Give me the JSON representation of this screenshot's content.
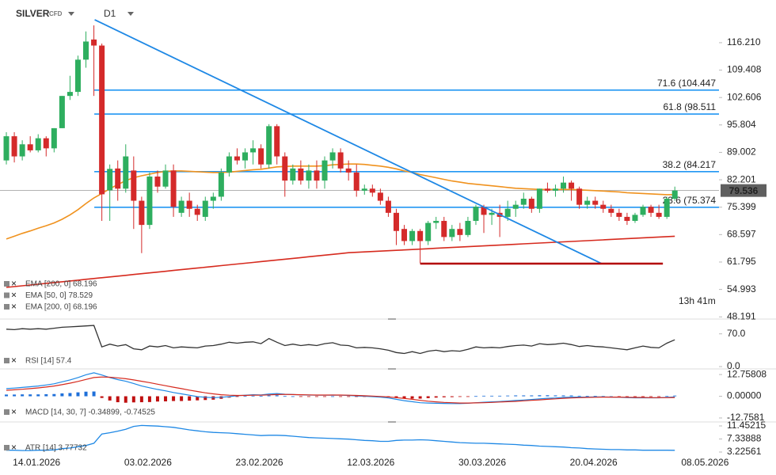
{
  "chart_data": [
    {
      "type": "candlestick",
      "title": "SILVER",
      "subtitle": "CFD",
      "timeframe": "D1",
      "categories": [
        null,
        null,
        null,
        "14.01.2026",
        null,
        null,
        null,
        null,
        null,
        null,
        null,
        null,
        null,
        null,
        null,
        null,
        null,
        "03.02.2026",
        null,
        null,
        null,
        null,
        null,
        null,
        null,
        null,
        null,
        null,
        null,
        null,
        null,
        "23.02.2026",
        null,
        null,
        null,
        null,
        null,
        null,
        null,
        null,
        null,
        null,
        null,
        null,
        null,
        "12.03.2026",
        null,
        null,
        null,
        null,
        null,
        null,
        null,
        null,
        null,
        null,
        null,
        null,
        null,
        "30.03.2026",
        null,
        null,
        null,
        null,
        null,
        null,
        null,
        null,
        null,
        null,
        null,
        null,
        null,
        "20.04.2026",
        null,
        null,
        null,
        null,
        null,
        null,
        null,
        null,
        null,
        null,
        null,
        null,
        null,
        "08.05.2026"
      ],
      "open": [
        87,
        93,
        88,
        91,
        89.5,
        92.5,
        90,
        95,
        103,
        104,
        112,
        117,
        115.5,
        79.6,
        85,
        80,
        84.5,
        77,
        71,
        83,
        80.5,
        84.5,
        74,
        77,
        75,
        73,
        77,
        78,
        84,
        88,
        87,
        89,
        90,
        86,
        95.5,
        88,
        82,
        85,
        82,
        84.5,
        82,
        87,
        89,
        85,
        84,
        79.5,
        80,
        79,
        77,
        74,
        70,
        67,
        69.5,
        67,
        71.5,
        72,
        68,
        70,
        68.5,
        72,
        75.5,
        73.5,
        74,
        73,
        75,
        76,
        77.5,
        75,
        80,
        79.5,
        80,
        81.5,
        80,
        76,
        77,
        76,
        75,
        74,
        73,
        72,
        73.5,
        75.5,
        74,
        73,
        77.5,
        null,
        null,
        null
      ],
      "high": [
        94,
        94,
        92,
        93,
        93.5,
        93,
        95,
        103,
        108,
        113,
        119,
        120.5,
        116,
        86,
        87,
        91,
        88,
        78,
        84,
        84.5,
        86,
        86,
        78,
        79,
        76,
        78,
        79,
        85,
        89,
        90,
        90,
        92,
        91,
        96,
        96,
        89,
        86,
        87,
        86,
        87,
        88,
        90,
        90,
        87,
        86,
        81,
        81,
        80,
        78,
        75,
        71,
        70,
        70,
        72,
        73,
        73,
        71,
        71.5,
        73,
        76,
        76,
        75,
        76,
        77,
        77,
        79,
        78,
        80,
        81.5,
        81,
        83,
        82,
        80.5,
        78,
        78,
        77,
        76,
        75,
        74,
        74,
        76,
        76,
        76,
        78,
        80.5,
        null,
        null,
        null
      ],
      "low": [
        86,
        86.5,
        87,
        89,
        89,
        88,
        89,
        95,
        102,
        103,
        110,
        103,
        72,
        72,
        77,
        79,
        70,
        64,
        70,
        79,
        80,
        73,
        73,
        73,
        72,
        72,
        75,
        77,
        83,
        86,
        85,
        86,
        85,
        85,
        86,
        78,
        81,
        81,
        80,
        80,
        80,
        85,
        84,
        82,
        78,
        78.5,
        78,
        76,
        73,
        66,
        66,
        66,
        61.5,
        66,
        70,
        67,
        67,
        67,
        68,
        71,
        69,
        71,
        68,
        72,
        73,
        75,
        74,
        74,
        79,
        78,
        79,
        77,
        75,
        75,
        75,
        74,
        73,
        72,
        71,
        71.5,
        73,
        73,
        72.5,
        72.5,
        77,
        null,
        null,
        null
      ],
      "close": [
        93,
        88,
        91,
        89.5,
        92.5,
        90,
        95,
        103,
        104,
        112,
        116.5,
        115.5,
        78.6,
        84.9,
        80,
        88,
        77,
        71,
        83,
        80.5,
        84.5,
        75.5,
        77,
        75,
        73.5,
        77,
        78,
        84,
        88,
        87,
        89,
        90,
        86,
        95.5,
        88,
        82,
        85,
        82,
        84.5,
        82,
        87,
        89,
        85,
        84,
        79.5,
        80,
        79,
        77,
        74,
        69.5,
        67,
        69.5,
        67,
        71.5,
        72,
        68,
        70,
        68.5,
        72,
        75.5,
        73.5,
        74,
        73,
        75,
        76,
        77.5,
        75,
        80,
        79.5,
        80,
        81.5,
        80,
        76,
        77,
        76,
        75,
        74,
        73,
        72,
        73.5,
        75.5,
        74,
        73,
        77.5,
        79.536,
        null,
        null,
        null
      ],
      "up_color": "#2eae5f",
      "down_color": "#d42a2a",
      "series": [
        {
          "color": "#d62a1e",
          "values": [
            55.5,
            55.7,
            55.9,
            56.1,
            56.3,
            56.5,
            56.7,
            56.9,
            57.1,
            57.3,
            57.5,
            57.7,
            57.9,
            58.1,
            58.3,
            58.5,
            58.7,
            58.9,
            59.1,
            59.3,
            59.5,
            59.7,
            59.9,
            60.1,
            60.3,
            60.5,
            60.7,
            60.9,
            61.1,
            61.3,
            61.5,
            61.7,
            61.9,
            62.1,
            62.3,
            62.5,
            62.7,
            62.9,
            63.1,
            63.3,
            63.5,
            63.7,
            63.9,
            64.1,
            64.2,
            64.3,
            64.4,
            64.5,
            64.6,
            64.7,
            64.8,
            64.9,
            65.0,
            65.1,
            65.2,
            65.3,
            65.4,
            65.5,
            65.6,
            65.7,
            65.8,
            65.9,
            66.0,
            66.1,
            66.2,
            66.3,
            66.4,
            66.5,
            66.6,
            66.7,
            66.8,
            66.9,
            67.0,
            67.1,
            67.2,
            67.3,
            67.4,
            67.5,
            67.6,
            67.7,
            67.8,
            67.9,
            68.0,
            68.1,
            68.196,
            null,
            null,
            null
          ]
        },
        {
          "color": "#f0921e",
          "values": [
            67.5,
            68.2,
            68.9,
            69.5,
            70.2,
            70.8,
            71.5,
            72.4,
            73.5,
            74.8,
            76.3,
            77.7,
            78.8,
            80.0,
            81.0,
            82.0,
            82.7,
            83.2,
            83.6,
            84.0,
            84.3,
            84.4,
            84.4,
            84.3,
            84.2,
            84.1,
            84.0,
            84.0,
            84.1,
            84.3,
            84.5,
            84.7,
            84.8,
            85.1,
            85.4,
            85.5,
            85.6,
            85.6,
            85.6,
            85.6,
            85.7,
            85.9,
            86.0,
            86.1,
            86.1,
            86.0,
            85.8,
            85.6,
            85.3,
            84.9,
            84.4,
            84.0,
            83.5,
            83.1,
            82.7,
            82.3,
            81.9,
            81.6,
            81.3,
            81.1,
            80.9,
            80.7,
            80.5,
            80.3,
            80.1,
            80.0,
            79.9,
            79.8,
            79.8,
            79.8,
            79.8,
            79.8,
            79.7,
            79.6,
            79.5,
            79.4,
            79.3,
            79.2,
            79.0,
            78.9,
            78.8,
            78.7,
            78.6,
            78.5,
            78.529,
            null,
            null,
            null
          ]
        }
      ],
      "legend": [
        "EMA [200, 0] 68.196",
        "EMA [50, 0] 78.529",
        "EMA [200, 0] 68.196"
      ],
      "levels": [
        {
          "value": 104.447,
          "label": "71.6 (104.447"
        },
        {
          "value": 98.511,
          "label": "61.8 (98.511"
        },
        {
          "value": 84.217,
          "label": "38.2 (84.217"
        },
        {
          "value": 75.374,
          "label": "23.6 (75.374"
        }
      ],
      "level_color": "#2196f3",
      "trendline": {
        "from": [
          11.1,
          121.9
        ],
        "to": [
          74.8,
          61.4
        ],
        "color": "#1e88e5"
      },
      "support": {
        "value": 61.4,
        "start": 52,
        "end": 82.5,
        "color": "#b30000"
      },
      "last_price": 79.536,
      "timer": "13h 41m",
      "ylim": [
        47.65,
        126.8
      ],
      "yticks": [
        {
          "value": 116.21,
          "label": "116.210"
        },
        109.408,
        102.606,
        95.804,
        89.002,
        82.201,
        75.399,
        68.597,
        61.795,
        54.993,
        48.191
      ]
    },
    {
      "type": "line",
      "label": "RSI [14] 57.4",
      "color": "#333333",
      "values": [
        80,
        79,
        81,
        80,
        81,
        80,
        82,
        84,
        85,
        86,
        87,
        88,
        42,
        48,
        44,
        47,
        38,
        36,
        44,
        42,
        45,
        40,
        42,
        41,
        40,
        44,
        45,
        48,
        52,
        50,
        52,
        53,
        49,
        60,
        52,
        45,
        48,
        45,
        47,
        45,
        49,
        51,
        46,
        45,
        40,
        41,
        40,
        38,
        35,
        30,
        28,
        32,
        28,
        33,
        35,
        32,
        34,
        33,
        37,
        42,
        40,
        41,
        40,
        43,
        45,
        46,
        44,
        49,
        47,
        48,
        50,
        47,
        43,
        45,
        43,
        42,
        40,
        38,
        36,
        40,
        44,
        41,
        40,
        50,
        57.4,
        null,
        null,
        null
      ],
      "ylim": [
        -5,
        100
      ],
      "yticks": [
        {
          "value": 70,
          "label": "70.0"
        },
        {
          "value": 0,
          "label": "0.0"
        }
      ]
    },
    {
      "type": "macd",
      "label": "MACD [14, 30, 7] -0.34899, -0.74525",
      "histogram": [
        1.0,
        1.0,
        1.1,
        1.1,
        1.1,
        1.2,
        1.3,
        1.7,
        1.9,
        2.3,
        2.7,
        2.8,
        -1.0,
        -2.5,
        -3.5,
        -3.8,
        -3.6,
        -3.5,
        -3.4,
        -3.1,
        -3.0,
        -2.8,
        -2.8,
        -2.6,
        -2.4,
        -2.2,
        -2.0,
        -1.5,
        -0.8,
        -0.3,
        0.1,
        0.3,
        0.2,
        0.5,
        0.6,
        0.1,
        0.0,
        -0.1,
        -0.1,
        -0.1,
        -0.1,
        0.0,
        -0.1,
        -0.1,
        -0.3,
        -0.3,
        -0.3,
        -0.4,
        -0.6,
        -1.0,
        -1.3,
        -1.4,
        -1.4,
        -1.1,
        -0.8,
        -0.6,
        -0.5,
        -0.3,
        -0.1,
        0.1,
        0.3,
        0.3,
        0.3,
        0.4,
        0.5,
        0.5,
        0.5,
        0.6,
        0.6,
        0.5,
        0.5,
        0.5,
        0.3,
        0.2,
        0.2,
        0.1,
        0.0,
        -0.1,
        -0.2,
        -0.2,
        -0.2,
        -0.1,
        -0.1,
        0.1,
        0.4,
        null,
        null,
        null
      ],
      "macd": [
        4.5,
        4.8,
        5.2,
        5.6,
        6.0,
        6.6,
        7.3,
        8.5,
        9.6,
        11.0,
        12.6,
        13.8,
        12.5,
        11.0,
        9.8,
        8.8,
        7.5,
        6.0,
        5.0,
        4.0,
        3.2,
        2.2,
        1.4,
        0.6,
        -0.2,
        -0.6,
        -0.8,
        -0.6,
        -0.2,
        0.3,
        0.6,
        0.9,
        0.8,
        1.3,
        1.6,
        1.2,
        1.0,
        0.8,
        0.7,
        0.6,
        0.6,
        0.7,
        0.6,
        0.5,
        0.2,
        0.0,
        -0.2,
        -0.5,
        -1.0,
        -1.8,
        -2.6,
        -3.2,
        -3.8,
        -4.0,
        -4.1,
        -4.2,
        -4.3,
        -4.3,
        -4.1,
        -3.8,
        -3.5,
        -3.3,
        -3.1,
        -2.8,
        -2.5,
        -2.2,
        -1.9,
        -1.5,
        -1.2,
        -1.0,
        -0.7,
        -0.5,
        -0.5,
        -0.5,
        -0.4,
        -0.4,
        -0.5,
        -0.6,
        -0.8,
        -0.9,
        -0.9,
        -0.9,
        -0.9,
        -0.7,
        -0.34899,
        null,
        null,
        null
      ],
      "signal": [
        3.5,
        3.8,
        4.1,
        4.5,
        4.9,
        5.4,
        6.0,
        6.8,
        7.7,
        8.7,
        9.9,
        11.0,
        11.3,
        11.2,
        10.8,
        10.3,
        9.6,
        8.8,
        8.0,
        7.1,
        6.2,
        5.3,
        4.5,
        3.6,
        2.8,
        2.0,
        1.4,
        0.9,
        0.6,
        0.5,
        0.5,
        0.6,
        0.6,
        0.8,
        1.0,
        1.1,
        1.0,
        0.9,
        0.8,
        0.7,
        0.7,
        0.7,
        0.7,
        0.6,
        0.5,
        0.3,
        0.1,
        -0.1,
        -0.4,
        -0.8,
        -1.3,
        -1.8,
        -2.4,
        -2.9,
        -3.3,
        -3.6,
        -3.8,
        -4.0,
        -4.0,
        -3.9,
        -3.8,
        -3.6,
        -3.4,
        -3.2,
        -3.0,
        -2.7,
        -2.4,
        -2.1,
        -1.8,
        -1.5,
        -1.2,
        -1.0,
        -0.8,
        -0.7,
        -0.6,
        -0.5,
        -0.5,
        -0.5,
        -0.6,
        -0.7,
        -0.7,
        -0.8,
        -0.8,
        -0.8,
        -0.74525,
        null,
        null,
        null
      ],
      "macd_color": "#1e88e5",
      "signal_color": "#d62a1e",
      "up_color": "#1e6fd9",
      "down_color": "#c01010",
      "ylim": [
        -15.1,
        15.6
      ],
      "yticks": [
        12.75808,
        {
          "value": 0,
          "label": "0.00000"
        },
        -12.7581
      ]
    },
    {
      "type": "line",
      "label": "ATR [14] 3.77732",
      "color": "#1e88e5",
      "values": [
        3.8,
        3.8,
        3.7,
        3.7,
        3.8,
        3.8,
        3.9,
        4.3,
        4.5,
        4.9,
        5.3,
        6.0,
        8.9,
        9.3,
        9.8,
        10.4,
        11.3,
        11.6,
        11.5,
        11.4,
        11.2,
        11.0,
        10.6,
        10.2,
        9.9,
        9.6,
        9.4,
        9.3,
        9.2,
        9.0,
        8.8,
        8.6,
        8.4,
        8.5,
        8.5,
        8.4,
        8.2,
        8.0,
        7.8,
        7.7,
        7.6,
        7.5,
        7.4,
        7.3,
        7.1,
        6.9,
        6.8,
        6.6,
        6.6,
        6.9,
        7.0,
        7.0,
        7.1,
        7.0,
        6.8,
        6.6,
        6.4,
        6.2,
        6.1,
        6.0,
        6.0,
        5.9,
        5.8,
        5.7,
        5.6,
        5.4,
        5.3,
        5.1,
        5.0,
        4.9,
        4.8,
        4.6,
        4.5,
        4.3,
        4.2,
        4.1,
        4.0,
        4.0,
        3.9,
        3.9,
        3.8,
        3.8,
        3.8,
        3.8,
        3.77732,
        null,
        null,
        null
      ],
      "ylim": [
        1.98,
        12.45
      ],
      "yticks": [
        11.45215,
        7.33888,
        3.22561
      ]
    }
  ]
}
